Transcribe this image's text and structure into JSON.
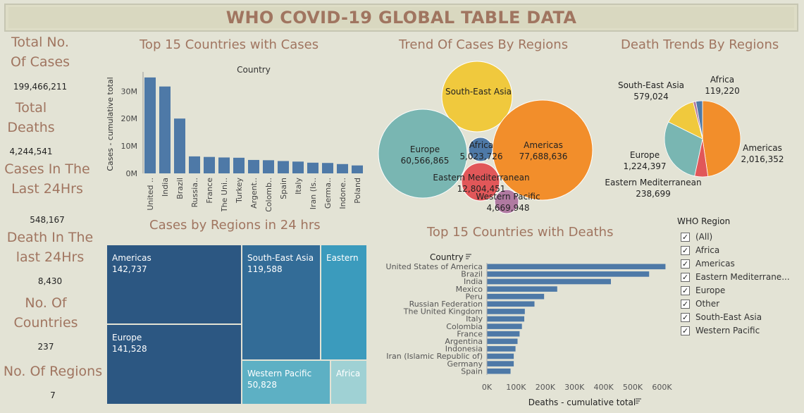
{
  "title": "WHO COVID-19 GLOBAL TABLE DATA",
  "kpis": [
    {
      "label": "Total No. Of Cases",
      "value": "199,466,211"
    },
    {
      "label": "Total Deaths",
      "value": "4,244,541"
    },
    {
      "label": "Cases In The Last 24Hrs",
      "value": "548,167"
    },
    {
      "label": "Death In The last 24Hrs",
      "value": "8,430"
    },
    {
      "label": "No. Of Countries",
      "value": "237"
    },
    {
      "label": "No. Of Regions",
      "value": "7"
    }
  ],
  "chart_data": [
    {
      "type": "bar",
      "title": "Top 15 Countries with Cases",
      "header": "Country",
      "ylabel": "Cases - cumulative total",
      "categories": [
        "United ..",
        "India",
        "Brazil",
        "Russia..",
        "France",
        "The Uni..",
        "Turkey",
        "Argent..",
        "Colomb..",
        "Spain",
        "Italy",
        "Iran (Is..",
        "Germa..",
        "Indone..",
        "Poland"
      ],
      "values": [
        35000000,
        31700000,
        20000000,
        6200000,
        6000000,
        5800000,
        5700000,
        4900000,
        4800000,
        4500000,
        4300000,
        3900000,
        3800000,
        3400000,
        2900000
      ],
      "yticks": [
        "30M",
        "20M",
        "10M",
        "0M"
      ],
      "ytick_values": [
        30000000,
        20000000,
        10000000,
        0
      ]
    },
    {
      "type": "bubble",
      "title": "Trend Of Cases By Regions",
      "regions": [
        {
          "name": "South-East Asia",
          "value": "",
          "color": "#f0c93d"
        },
        {
          "name": "Europe",
          "value": "60,566,865",
          "color": "#79b6b2"
        },
        {
          "name": "Africa",
          "value": "5,023,726",
          "color": "#4e79a7"
        },
        {
          "name": "Americas",
          "value": "77,688,636",
          "color": "#f28e2b"
        },
        {
          "name": "Eastern Mediterranean",
          "value": "12,804,451",
          "color": "#e15759"
        },
        {
          "name": "Western Pacific",
          "value": "4,669,948",
          "color": "#b07aa1"
        }
      ]
    },
    {
      "type": "pie",
      "title": "Death Trends By Regions",
      "slices": [
        {
          "name": "Americas",
          "value": 2016352,
          "label": "2,016,352",
          "color": "#f28e2b"
        },
        {
          "name": "Eastern Mediterranean",
          "value": 238699,
          "label": "238,699",
          "color": "#e15759"
        },
        {
          "name": "Europe",
          "value": 1224397,
          "label": "1,224,397",
          "color": "#79b6b2"
        },
        {
          "name": "South-East Asia",
          "value": 579024,
          "label": "579,024",
          "color": "#f0c93d"
        },
        {
          "name": "Western Pacific",
          "value": 49000,
          "label": "",
          "color": "#b07aa1"
        },
        {
          "name": "Africa",
          "value": 119220,
          "label": "119,220",
          "color": "#4e79a7"
        }
      ]
    },
    {
      "type": "treemap",
      "title": "Cases by Regions in 24 hrs",
      "cells": [
        {
          "name": "Americas",
          "value": "142,737",
          "color": "#2c5782"
        },
        {
          "name": "Europe",
          "value": "141,528",
          "color": "#2c5782"
        },
        {
          "name": "South-East Asia",
          "value": "119,588",
          "color": "#336c97"
        },
        {
          "name": "Eastern",
          "value": "",
          "color": "#3b9bbd"
        },
        {
          "name": "Western Pacific",
          "value": "50,828",
          "color": "#5db0c4"
        },
        {
          "name": "Africa",
          "value": "",
          "color": "#9fd1d4"
        }
      ]
    },
    {
      "type": "bar",
      "orientation": "horizontal",
      "title": "Top 15 Countries with Deaths",
      "header": "Country",
      "xlabel": "Deaths - cumulative total",
      "categories": [
        "United States of America",
        "Brazil",
        "India",
        "Mexico",
        "Peru",
        "Russian Federation",
        "The United Kingdom",
        "Italy",
        "Colombia",
        "France",
        "Argentina",
        "Indonesia",
        "Iran (Islamic Republic of)",
        "Germany",
        "Spain"
      ],
      "values": [
        612000,
        556000,
        425000,
        241000,
        196000,
        163000,
        130000,
        128000,
        120000,
        112000,
        105000,
        98000,
        92000,
        92000,
        81000
      ],
      "xticks": [
        "0K",
        "100K",
        "200K",
        "300K",
        "400K",
        "500K",
        "600K"
      ],
      "xtick_values": [
        0,
        100000,
        200000,
        300000,
        400000,
        500000,
        600000
      ],
      "xlim": [
        0,
        640000
      ]
    }
  ],
  "filter": {
    "title": "WHO Region",
    "options": [
      "(All)",
      "Africa",
      "Americas",
      "Eastern Mediterrane...",
      "Europe",
      "Other",
      "South-East Asia",
      "Western Pacific"
    ]
  }
}
